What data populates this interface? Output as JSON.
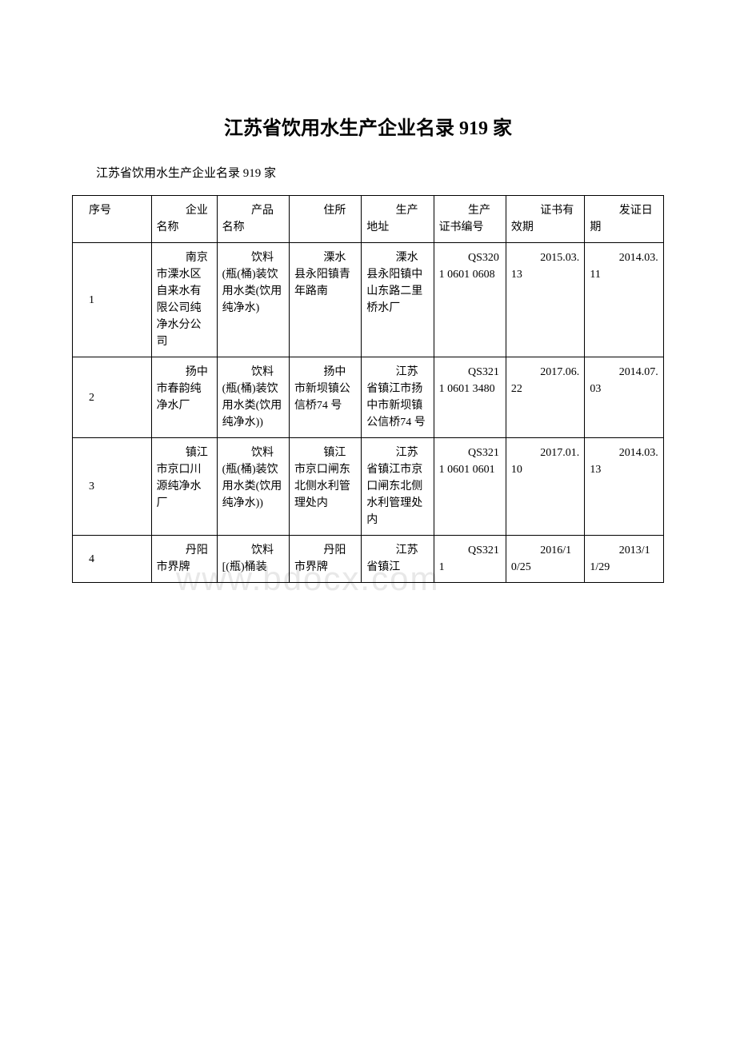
{
  "document": {
    "title": "江苏省饮用水生产企业名录 919 家",
    "subtitle": "江苏省饮用水生产企业名录 919 家",
    "watermark": "www.bdocx.com",
    "background_color": "#ffffff",
    "text_color": "#000000",
    "border_color": "#000000",
    "watermark_color": "#e8e8e8",
    "title_fontsize": 24,
    "body_fontsize": 14
  },
  "table": {
    "columns": [
      "序号",
      "企业名称",
      "产品名称",
      "住所",
      "生产地址",
      "生产证书编号",
      "证书有效期",
      "发证日期"
    ],
    "rows": [
      {
        "seq": "1",
        "company": "南京市溧水区自来水有限公司纯净水分公司",
        "product": "饮料(瓶(桶)装饮用水类(饮用纯净水)",
        "address": "溧水县永阳镇青年路南",
        "prodaddr": "溧水县永阳镇中山东路二里桥水厂",
        "cert": "QS3201 0601 0608",
        "validity": "2015.03.13",
        "issue": "2014.03.11"
      },
      {
        "seq": "2",
        "company": "扬中市春韵纯净水厂",
        "product": "饮料(瓶(桶)装饮用水类(饮用纯净水))",
        "address": "扬中市新坝镇公信桥74 号",
        "prodaddr": "江苏省镇江市扬中市新坝镇公信桥74 号",
        "cert": "QS3211 0601 3480",
        "validity": "2017.06.22",
        "issue": "2014.07.03"
      },
      {
        "seq": "3",
        "company": "镇江市京口川源纯净水厂",
        "product": "饮料(瓶(桶)装饮用水类(饮用纯净水))",
        "address": "镇江市京口闸东北侧水利管理处内",
        "prodaddr": "江苏省镇江市京口闸东北侧水利管理处内",
        "cert": "QS3211 0601 0601",
        "validity": "2017.01.10",
        "issue": "2014.03.13"
      },
      {
        "seq": "4",
        "company": "丹阳市界牌",
        "product": "饮料[(瓶)桶装",
        "address": "丹阳市界牌",
        "prodaddr": "江苏省镇江",
        "cert": "QS3211",
        "validity": "2016/10/25",
        "issue": "2013/11/29"
      }
    ]
  }
}
